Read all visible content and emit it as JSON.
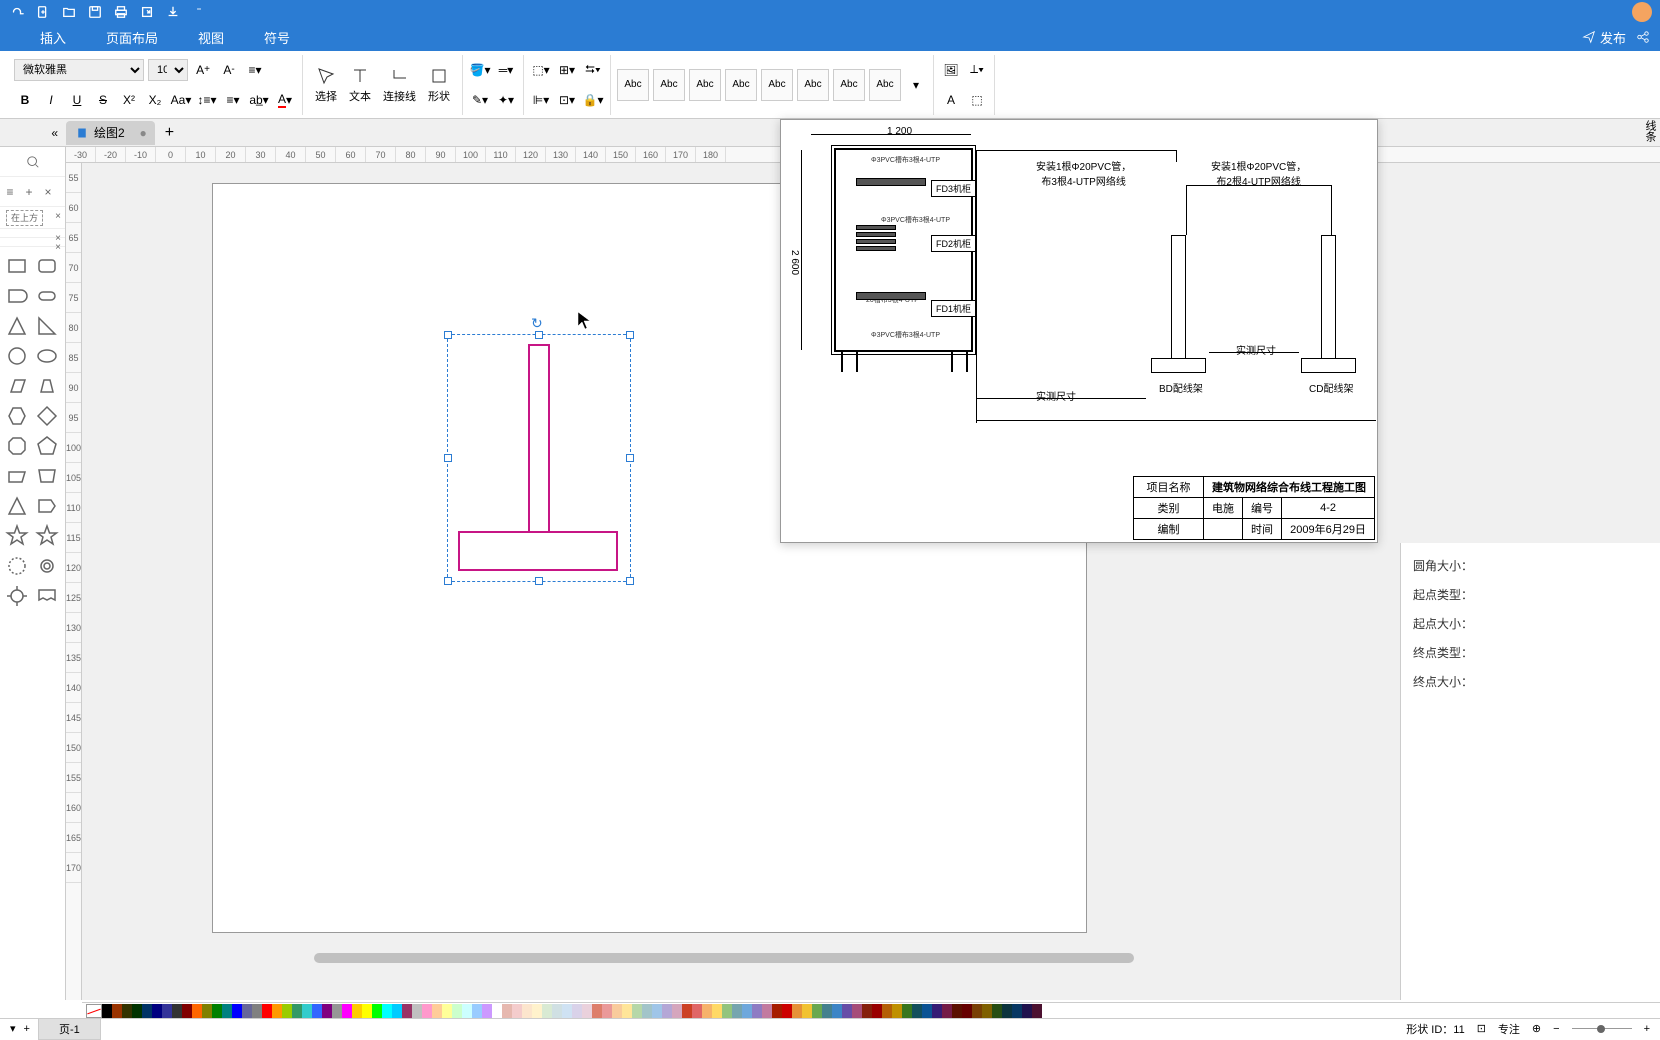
{
  "topbar": {
    "publish": "发布"
  },
  "menu": {
    "insert": "插入",
    "layout": "页面布局",
    "view": "视图",
    "symbol": "符号"
  },
  "toolbar": {
    "font_name": "微软雅黑",
    "font_size": "10",
    "select": "选择",
    "text": "文本",
    "connector": "连接线",
    "shape": "形状",
    "abc": "Abc"
  },
  "tab": {
    "name": "绘图2"
  },
  "ruler_h": [
    "-30",
    "-20",
    "-10",
    "0",
    "10",
    "20",
    "30",
    "40",
    "50",
    "60",
    "70",
    "80",
    "90",
    "100",
    "110",
    "120",
    "130",
    "140",
    "150",
    "160",
    "170",
    "180"
  ],
  "ruler_v": [
    "55",
    "60",
    "65",
    "70",
    "75",
    "80",
    "85",
    "90",
    "95",
    "100",
    "105",
    "110",
    "115",
    "120",
    "125",
    "130",
    "135",
    "140",
    "145",
    "150",
    "155",
    "160",
    "165",
    "170"
  ],
  "overlay": {
    "dim_top": "1 200",
    "dim_left": "2 600",
    "fd3": "FD3机柜",
    "fd2": "FD2机柜",
    "fd1": "FD1机柜",
    "note1a": "安装1根Φ20PVC管，",
    "note1b": "布3根4-UTP网络线",
    "note2a": "安装1根Φ20PVC管，",
    "note2b": "布2根4-UTP网络线",
    "actual1": "实测尺寸",
    "actual2": "实测尺寸",
    "bd": "BD配线架",
    "cd": "CD配线架",
    "p1": "Φ3PVC槽布3根4-UTP",
    "p2": "Φ3PVC槽布3根4-UTP",
    "p3": "20槽布3根4-UTP",
    "p4": "Φ3PVC槽布3根4-UTP",
    "table": {
      "r1c1": "项目名称",
      "r1c2": "建筑物网络综合布线工程施工图",
      "r2c1": "类别",
      "r2c2": "电施",
      "r2c3": "编号",
      "r2c4": "4-2",
      "r3c1": "编制",
      "r3c2": "",
      "r3c3": "时间",
      "r3c4": "2009年6月29日"
    }
  },
  "props": {
    "corner": "圆角大小：",
    "start_type": "起点类型：",
    "start_size": "起点大小：",
    "end_type": "终点类型：",
    "end_size": "终点大小：",
    "line_style": "线条"
  },
  "colors": [
    "#000000",
    "#993300",
    "#333300",
    "#003300",
    "#003366",
    "#000080",
    "#333399",
    "#333333",
    "#800000",
    "#ff6600",
    "#808000",
    "#008000",
    "#008080",
    "#0000ff",
    "#666699",
    "#808080",
    "#ff0000",
    "#ff9900",
    "#99cc00",
    "#339966",
    "#33cccc",
    "#3366ff",
    "#800080",
    "#969696",
    "#ff00ff",
    "#ffcc00",
    "#ffff00",
    "#00ff00",
    "#00ffff",
    "#00ccff",
    "#993366",
    "#c0c0c0",
    "#ff99cc",
    "#ffcc99",
    "#ffff99",
    "#ccffcc",
    "#ccffff",
    "#99ccff",
    "#cc99ff",
    "#ffffff",
    "#e6b8af",
    "#f4cccc",
    "#fce5cd",
    "#fff2cc",
    "#d9ead3",
    "#d0e0e3",
    "#cfe2f3",
    "#d9d2e9",
    "#ead1dc",
    "#dd7e6b",
    "#ea9999",
    "#f9cb9c",
    "#ffe599",
    "#b6d7a8",
    "#a2c4c9",
    "#9fc5e8",
    "#b4a7d6",
    "#d5a6bd",
    "#cc4125",
    "#e06666",
    "#f6b26b",
    "#ffd966",
    "#93c47d",
    "#76a5af",
    "#6fa8dc",
    "#8e7cc3",
    "#c27ba0",
    "#a61c00",
    "#cc0000",
    "#e69138",
    "#f1c232",
    "#6aa84f",
    "#45818e",
    "#3d85c6",
    "#674ea7",
    "#a64d79",
    "#85200c",
    "#990000",
    "#b45f06",
    "#bf9000",
    "#38761d",
    "#134f5c",
    "#0b5394",
    "#351c75",
    "#741b47",
    "#5b0f00",
    "#660000",
    "#783f04",
    "#7f6000",
    "#274e13",
    "#0c343d",
    "#073763",
    "#20124d",
    "#4c1130"
  ],
  "status": {
    "shape_id": "形状 ID：",
    "shape_id_val": "11",
    "focus": "专注",
    "page": "页-1"
  }
}
